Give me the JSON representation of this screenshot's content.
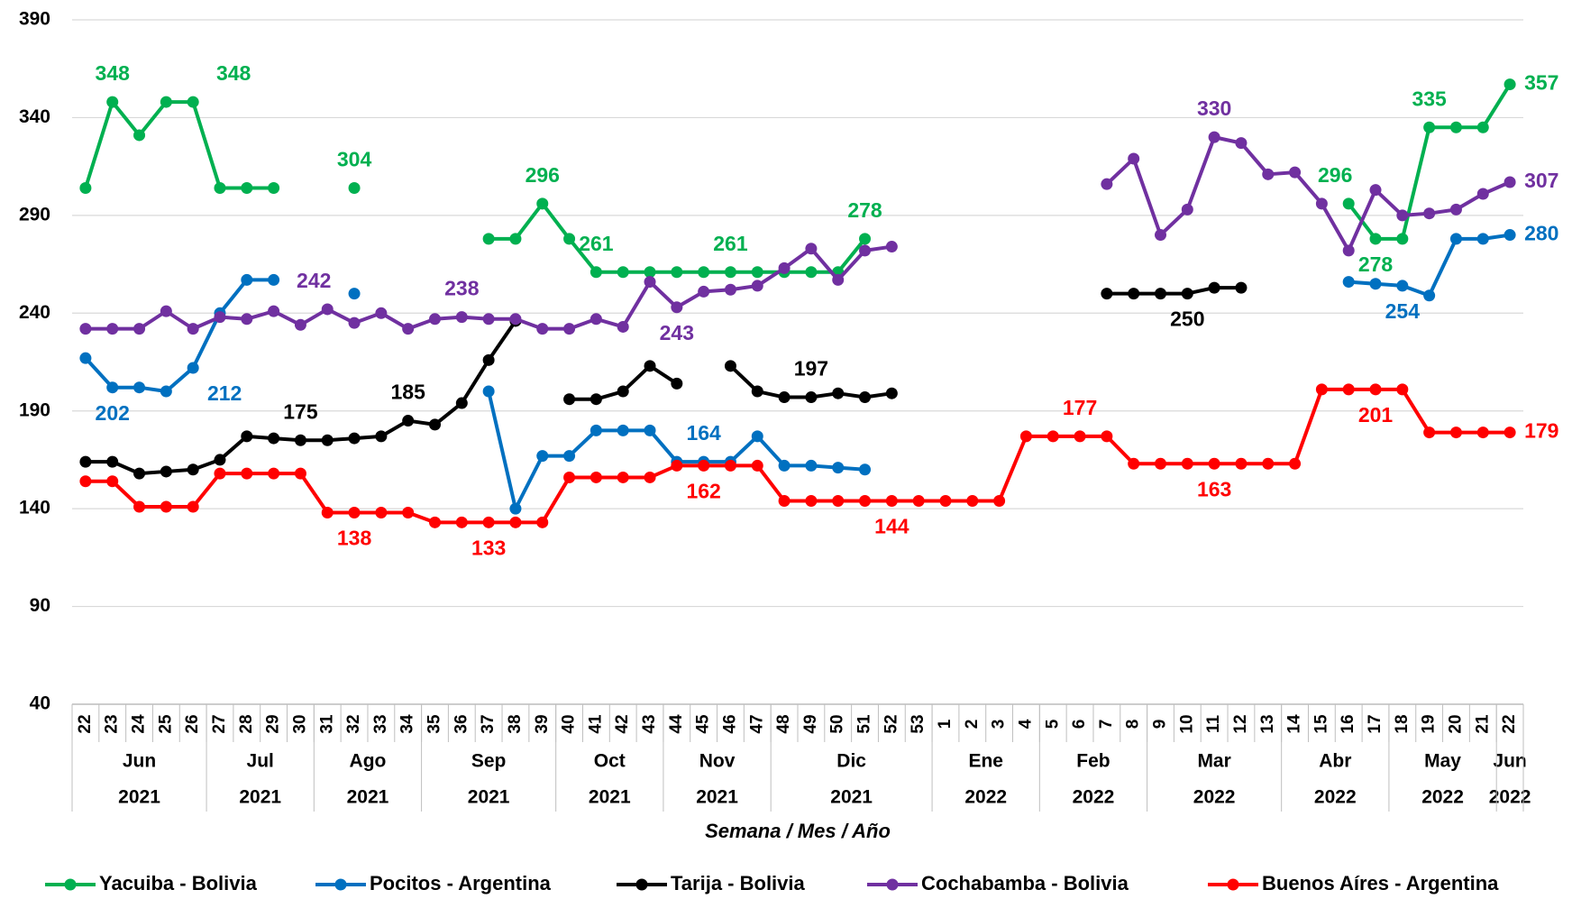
{
  "chart_data": {
    "type": "line",
    "x_label": "Semana / Mes / Año",
    "categories": [
      "22",
      "23",
      "24",
      "25",
      "26",
      "27",
      "28",
      "29",
      "30",
      "31",
      "32",
      "33",
      "34",
      "35",
      "36",
      "37",
      "38",
      "39",
      "40",
      "41",
      "42",
      "43",
      "44",
      "45",
      "46",
      "47",
      "48",
      "49",
      "50",
      "51",
      "52",
      "53",
      "1",
      "2",
      "3",
      "4",
      "5",
      "6",
      "7",
      "8",
      "9",
      "10",
      "11",
      "12",
      "13",
      "14",
      "15",
      "16",
      "17",
      "18",
      "19",
      "20",
      "21",
      "22"
    ],
    "months": [
      "Jun",
      "Jun",
      "Jun",
      "Jun",
      "Jun",
      "Jul",
      "Jul",
      "Jul",
      "Jul",
      "Ago",
      "Ago",
      "Ago",
      "Ago",
      "Sep",
      "Sep",
      "Sep",
      "Sep",
      "Sep",
      "Oct",
      "Oct",
      "Oct",
      "Oct",
      "Nov",
      "Nov",
      "Nov",
      "Nov",
      "Dic",
      "Dic",
      "Dic",
      "Dic",
      "Dic",
      "Dic",
      "Ene",
      "Ene",
      "Ene",
      "Ene",
      "Feb",
      "Feb",
      "Feb",
      "Feb",
      "Mar",
      "Mar",
      "Mar",
      "Mar",
      "Mar",
      "Abr",
      "Abr",
      "Abr",
      "Abr",
      "May",
      "May",
      "May",
      "May",
      "Jun"
    ],
    "years": [
      "2021",
      "2021",
      "2021",
      "2021",
      "2021",
      "2021",
      "2021",
      "2021",
      "2021",
      "2021",
      "2021",
      "2021",
      "2021",
      "2021",
      "2021",
      "2021",
      "2021",
      "2021",
      "2021",
      "2021",
      "2021",
      "2021",
      "2021",
      "2021",
      "2021",
      "2021",
      "2021",
      "2021",
      "2021",
      "2021",
      "2021",
      "2021",
      "2022",
      "2022",
      "2022",
      "2022",
      "2022",
      "2022",
      "2022",
      "2022",
      "2022",
      "2022",
      "2022",
      "2022",
      "2022",
      "2022",
      "2022",
      "2022",
      "2022",
      "2022",
      "2022",
      "2022",
      "2022",
      "2022"
    ],
    "ylim": [
      40,
      390
    ],
    "yticks": [
      40,
      90,
      140,
      190,
      240,
      290,
      340,
      390
    ],
    "grid": true,
    "legend": "bottom",
    "series": [
      {
        "name": "Yacuiba - Bolivia",
        "color": "#00b050",
        "values": [
          304,
          348,
          331,
          348,
          348,
          304,
          304,
          304,
          null,
          null,
          304,
          null,
          null,
          null,
          null,
          278,
          278,
          296,
          278,
          261,
          261,
          261,
          261,
          261,
          261,
          261,
          261,
          261,
          261,
          278,
          null,
          null,
          null,
          null,
          null,
          null,
          null,
          null,
          null,
          null,
          null,
          null,
          null,
          null,
          null,
          null,
          null,
          296,
          278,
          278,
          335,
          335,
          335,
          357
        ],
        "value_labels": [
          null,
          "348",
          null,
          null,
          "348",
          null,
          null,
          null,
          null,
          null,
          "304",
          null,
          null,
          null,
          null,
          null,
          null,
          "296",
          null,
          "261",
          null,
          null,
          null,
          null,
          "261",
          null,
          null,
          null,
          null,
          "278",
          null,
          null,
          null,
          null,
          null,
          null,
          null,
          null,
          null,
          null,
          null,
          null,
          null,
          null,
          null,
          null,
          null,
          "296",
          "278",
          null,
          "335",
          null,
          null,
          "357"
        ]
      },
      {
        "name": "Pocitos - Argentina",
        "color": "#0070c0",
        "values": [
          217,
          202,
          202,
          200,
          212,
          240,
          257,
          257,
          null,
          null,
          250,
          null,
          null,
          null,
          null,
          200,
          140,
          167,
          167,
          180,
          180,
          180,
          164,
          164,
          164,
          177,
          162,
          162,
          161,
          160,
          null,
          null,
          null,
          null,
          null,
          null,
          null,
          null,
          null,
          null,
          null,
          null,
          null,
          null,
          null,
          null,
          null,
          256,
          255,
          254,
          249,
          278,
          278,
          280
        ],
        "value_labels": [
          null,
          "202",
          null,
          null,
          "212",
          null,
          null,
          null,
          null,
          null,
          null,
          null,
          null,
          null,
          null,
          null,
          null,
          null,
          null,
          null,
          null,
          null,
          null,
          "164",
          null,
          null,
          null,
          null,
          null,
          null,
          null,
          null,
          null,
          null,
          null,
          null,
          null,
          null,
          null,
          null,
          null,
          null,
          null,
          null,
          null,
          null,
          null,
          null,
          null,
          "254",
          null,
          null,
          null,
          "280"
        ]
      },
      {
        "name": "Tarija - Bolivia",
        "color": "#000000",
        "values": [
          164,
          164,
          158,
          159,
          160,
          165,
          177,
          176,
          175,
          175,
          176,
          177,
          185,
          183,
          194,
          216,
          236,
          null,
          196,
          196,
          200,
          213,
          204,
          null,
          213,
          200,
          197,
          197,
          199,
          197,
          199,
          null,
          null,
          null,
          null,
          null,
          null,
          null,
          250,
          250,
          250,
          250,
          253,
          253,
          null,
          null,
          null,
          null,
          null,
          null,
          null,
          null,
          null,
          null
        ],
        "value_labels": [
          null,
          null,
          null,
          null,
          null,
          null,
          null,
          null,
          "175",
          null,
          null,
          null,
          "185",
          null,
          null,
          null,
          null,
          null,
          null,
          null,
          null,
          null,
          null,
          null,
          null,
          null,
          null,
          "197",
          null,
          null,
          null,
          null,
          null,
          null,
          null,
          null,
          null,
          null,
          null,
          null,
          null,
          "250",
          null,
          null,
          null,
          null,
          null,
          null,
          null,
          null,
          null,
          null,
          null,
          null
        ]
      },
      {
        "name": "Cochabamba - Bolivia",
        "color": "#7030a0",
        "values": [
          232,
          232,
          232,
          241,
          232,
          238,
          237,
          241,
          234,
          242,
          235,
          240,
          232,
          237,
          238,
          237,
          237,
          232,
          232,
          237,
          233,
          256,
          243,
          251,
          252,
          254,
          263,
          273,
          257,
          272,
          274,
          null,
          null,
          null,
          null,
          null,
          null,
          null,
          306,
          319,
          280,
          293,
          330,
          327,
          311,
          312,
          296,
          272,
          303,
          290,
          291,
          293,
          301,
          307
        ],
        "value_labels": [
          null,
          null,
          null,
          null,
          null,
          null,
          null,
          null,
          null,
          "242",
          null,
          null,
          null,
          null,
          "238",
          null,
          null,
          null,
          null,
          null,
          null,
          null,
          "243",
          null,
          null,
          null,
          null,
          null,
          null,
          null,
          null,
          null,
          null,
          null,
          null,
          null,
          null,
          null,
          null,
          null,
          null,
          null,
          "330",
          null,
          null,
          null,
          null,
          null,
          null,
          null,
          null,
          null,
          null,
          "307"
        ]
      },
      {
        "name": "Buenos Aíres - Argentina",
        "color": "#ff0000",
        "values": [
          154,
          154,
          141,
          141,
          141,
          158,
          158,
          158,
          158,
          138,
          138,
          138,
          138,
          133,
          133,
          133,
          133,
          133,
          156,
          156,
          156,
          156,
          162,
          162,
          162,
          162,
          144,
          144,
          144,
          144,
          144,
          144,
          144,
          144,
          144,
          177,
          177,
          177,
          177,
          163,
          163,
          163,
          163,
          163,
          163,
          163,
          201,
          201,
          201,
          201,
          179,
          179,
          179,
          179
        ],
        "value_labels": [
          null,
          null,
          null,
          null,
          null,
          null,
          null,
          null,
          null,
          null,
          "138",
          null,
          null,
          null,
          null,
          "133",
          null,
          null,
          null,
          null,
          null,
          null,
          null,
          "162",
          null,
          null,
          null,
          null,
          null,
          null,
          "144",
          null,
          null,
          null,
          null,
          null,
          null,
          "177",
          null,
          null,
          null,
          null,
          "163",
          null,
          null,
          null,
          null,
          null,
          "201",
          null,
          null,
          null,
          null,
          "179"
        ]
      }
    ]
  }
}
